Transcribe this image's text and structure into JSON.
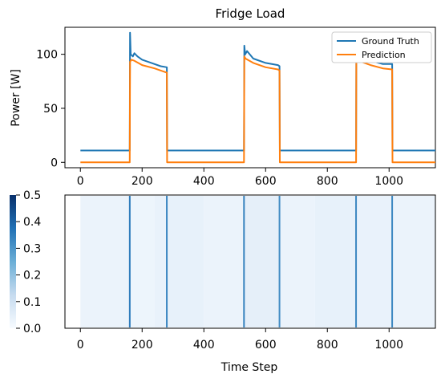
{
  "chart_data": [
    {
      "type": "line",
      "title": "Fridge Load",
      "xlabel": "",
      "ylabel": "Power [W]",
      "xlim": [
        -50,
        1150
      ],
      "ylim": [
        -5,
        125
      ],
      "xticks": [
        0,
        200,
        400,
        600,
        800,
        1000
      ],
      "yticks": [
        0,
        50,
        100
      ],
      "legend": {
        "placement": "top-right",
        "entries": [
          "Ground Truth",
          "Prediction"
        ]
      },
      "series": [
        {
          "name": "Ground Truth",
          "color": "#1f77b4",
          "points": [
            [
              0,
              11
            ],
            [
              160,
              11
            ],
            [
              161,
              120
            ],
            [
              163,
              100
            ],
            [
              170,
              98
            ],
            [
              175,
              101
            ],
            [
              185,
              98
            ],
            [
              200,
              95
            ],
            [
              230,
              92
            ],
            [
              260,
              89
            ],
            [
              280,
              88
            ],
            [
              281,
              11
            ],
            [
              530,
              11
            ],
            [
              531,
              108
            ],
            [
              534,
              100
            ],
            [
              540,
              103
            ],
            [
              560,
              96
            ],
            [
              600,
              92
            ],
            [
              640,
              90
            ],
            [
              645,
              89
            ],
            [
              646,
              11
            ],
            [
              893,
              11
            ],
            [
              894,
              100
            ],
            [
              900,
              97
            ],
            [
              940,
              94
            ],
            [
              980,
              91
            ],
            [
              1010,
              91
            ],
            [
              1011,
              11
            ],
            [
              1150,
              11
            ]
          ]
        },
        {
          "name": "Prediction",
          "color": "#ff7f0e",
          "points": [
            [
              0,
              0
            ],
            [
              160,
              0
            ],
            [
              161,
              93
            ],
            [
              165,
              95
            ],
            [
              175,
              94
            ],
            [
              200,
              90
            ],
            [
              240,
              87
            ],
            [
              270,
              84
            ],
            [
              280,
              83
            ],
            [
              281,
              0
            ],
            [
              530,
              0
            ],
            [
              531,
              98
            ],
            [
              535,
              96
            ],
            [
              560,
              92
            ],
            [
              600,
              88
            ],
            [
              640,
              86
            ],
            [
              645,
              85
            ],
            [
              646,
              0
            ],
            [
              893,
              0
            ],
            [
              894,
              93
            ],
            [
              900,
              94
            ],
            [
              940,
              90
            ],
            [
              980,
              87
            ],
            [
              1010,
              86
            ],
            [
              1011,
              0
            ],
            [
              1150,
              0
            ]
          ]
        }
      ]
    },
    {
      "type": "heatmap",
      "title": "",
      "xlabel": "Time Step",
      "ylabel": "",
      "xlim": [
        -50,
        1150
      ],
      "xticks": [
        0,
        200,
        400,
        600,
        800,
        1000
      ],
      "colorbar": {
        "range": [
          0.0,
          0.5
        ],
        "ticks": [
          "0.0",
          "0.1",
          "0.2",
          "0.3",
          "0.4",
          "0.5"
        ],
        "colormap": "Blues"
      },
      "segments": [
        {
          "x0": 0,
          "x1": 160,
          "value": 0.03
        },
        {
          "x0": 160,
          "x1": 240,
          "value": 0.025
        },
        {
          "x0": 240,
          "x1": 280,
          "value": 0.035
        },
        {
          "x0": 280,
          "x1": 400,
          "value": 0.04
        },
        {
          "x0": 400,
          "x1": 530,
          "value": 0.03
        },
        {
          "x0": 530,
          "x1": 645,
          "value": 0.045
        },
        {
          "x0": 645,
          "x1": 760,
          "value": 0.03
        },
        {
          "x0": 760,
          "x1": 893,
          "value": 0.04
        },
        {
          "x0": 893,
          "x1": 1010,
          "value": 0.035
        },
        {
          "x0": 1010,
          "x1": 1150,
          "value": 0.03
        }
      ],
      "spikes": [
        {
          "x": 160,
          "value": 0.35
        },
        {
          "x": 280,
          "value": 0.33
        },
        {
          "x": 530,
          "value": 0.34
        },
        {
          "x": 645,
          "value": 0.32
        },
        {
          "x": 893,
          "value": 0.33
        },
        {
          "x": 1010,
          "value": 0.33
        }
      ]
    }
  ]
}
